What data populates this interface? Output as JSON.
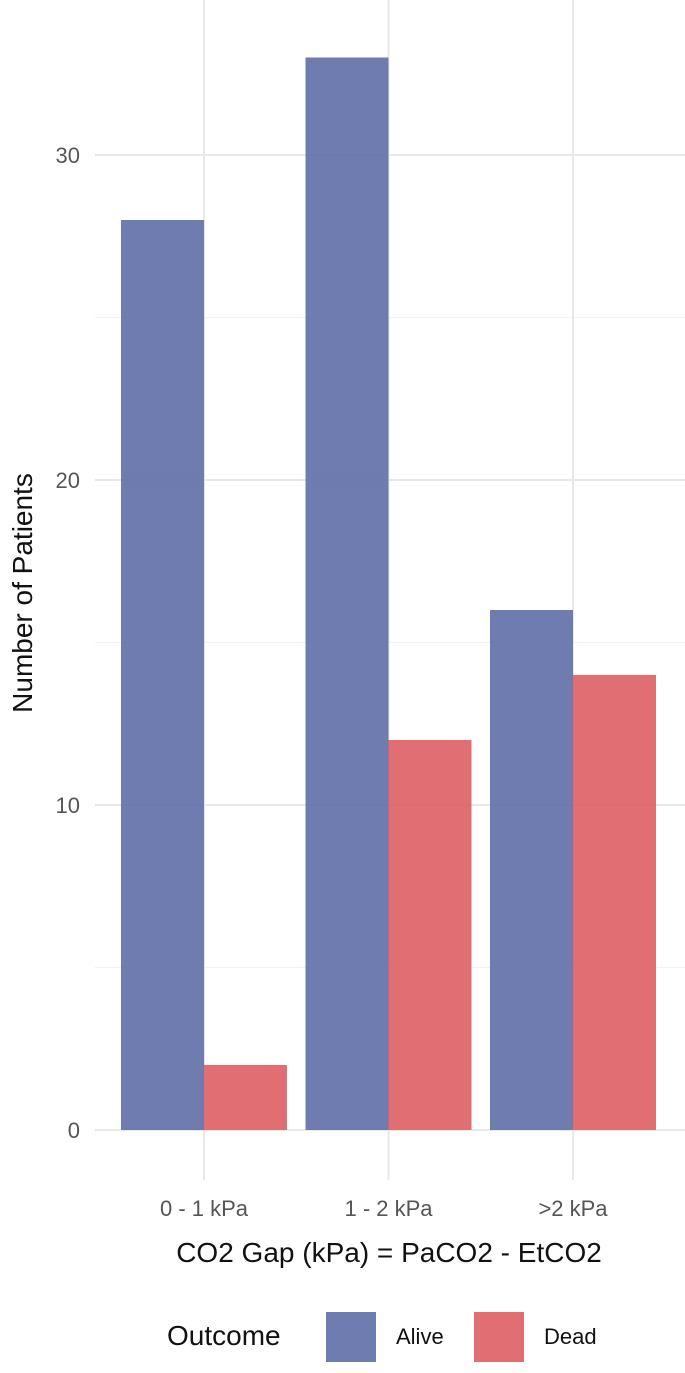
{
  "chart_data": {
    "type": "bar",
    "categories": [
      "0 - 1 kPa",
      "1 - 2 kPa",
      ">2 kPa"
    ],
    "series": [
      {
        "name": "Alive",
        "values": [
          28,
          33,
          16
        ],
        "color": "#5a6aa5"
      },
      {
        "name": "Dead",
        "values": [
          2,
          12,
          14
        ],
        "color": "#dc5a60"
      }
    ],
    "xlabel": "CO2 Gap (kPa) = PaCO2 - EtCO2",
    "ylabel": "Number of Patients",
    "ylim": [
      0,
      33.5
    ],
    "yticks": [
      0,
      10,
      20,
      30
    ],
    "grid": true,
    "legend": {
      "title": "Outcome",
      "position": "bottom"
    }
  }
}
